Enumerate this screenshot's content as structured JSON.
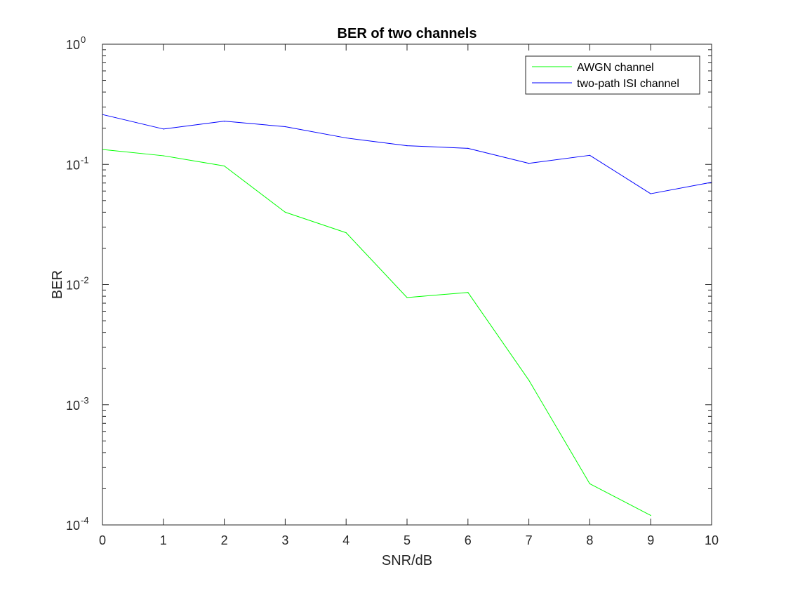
{
  "chart_data": {
    "type": "line",
    "title": "BER of two channels",
    "xlabel": "SNR/dB",
    "ylabel": "BER",
    "xlim": [
      0,
      10
    ],
    "ylim": [
      0.0001,
      1
    ],
    "yscale": "log",
    "grid": false,
    "legend_position": "top-right",
    "x_ticks": [
      "0",
      "1",
      "2",
      "3",
      "4",
      "5",
      "6",
      "7",
      "8",
      "9",
      "10"
    ],
    "y_ticks": [
      {
        "base": "10",
        "exp": "-4"
      },
      {
        "base": "10",
        "exp": "-3"
      },
      {
        "base": "10",
        "exp": "-2"
      },
      {
        "base": "10",
        "exp": "-1"
      },
      {
        "base": "10",
        "exp": "0"
      }
    ],
    "series": [
      {
        "name": "AWGN channel",
        "color": "#00ff00",
        "x": [
          0,
          1,
          2,
          3,
          4,
          5,
          6,
          7,
          8,
          9
        ],
        "y": [
          0.133,
          0.118,
          0.097,
          0.04,
          0.027,
          0.0078,
          0.0086,
          0.0016,
          0.00022,
          0.00012
        ]
      },
      {
        "name": "two-path ISI channel",
        "color": "#0000ff",
        "x": [
          0,
          1,
          2,
          3,
          4,
          5,
          6,
          7,
          8,
          9,
          10
        ],
        "y": [
          0.26,
          0.197,
          0.229,
          0.206,
          0.166,
          0.143,
          0.136,
          0.102,
          0.119,
          0.057,
          0.071
        ]
      }
    ]
  }
}
